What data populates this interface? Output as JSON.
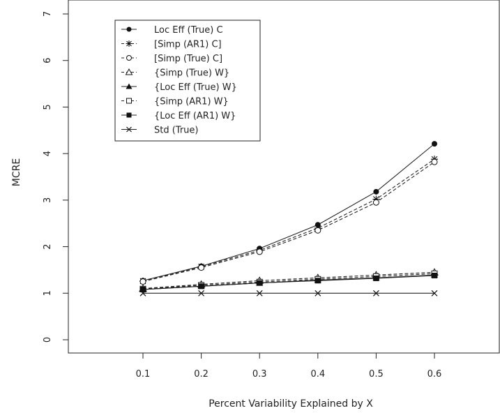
{
  "chart_data": {
    "type": "line",
    "title": "",
    "xlabel": "Percent Variability Explained by X",
    "ylabel": "MCRE",
    "x": [
      0.1,
      0.2,
      0.3,
      0.4,
      0.5,
      0.6
    ],
    "xlim": [
      0.0,
      0.7
    ],
    "ylim": [
      0,
      7
    ],
    "x_ticks": [
      "0.1",
      "0.2",
      "0.3",
      "0.4",
      "0.5",
      "0.6"
    ],
    "y_ticks": [
      "0",
      "1",
      "2",
      "3",
      "4",
      "5",
      "6",
      "7"
    ],
    "grid": false,
    "legend_position": "top-left",
    "series": [
      {
        "name": "Loc Eff (True) C",
        "marker": "filled-circle",
        "line": "solid",
        "values": [
          1.27,
          1.58,
          1.96,
          2.47,
          3.18,
          4.21
        ]
      },
      {
        "name": "[Simp (AR1) C]",
        "marker": "star",
        "line": "dashed",
        "values": [
          1.26,
          1.57,
          1.92,
          2.4,
          3.02,
          3.88
        ]
      },
      {
        "name": "[Simp (True) C]",
        "marker": "open-circle",
        "line": "dashed",
        "values": [
          1.25,
          1.55,
          1.89,
          2.35,
          2.95,
          3.82
        ]
      },
      {
        "name": "{Simp (True) W}",
        "marker": "open-triangle",
        "line": "dashed",
        "values": [
          1.1,
          1.19,
          1.27,
          1.33,
          1.39,
          1.45
        ]
      },
      {
        "name": "{Loc Eff (True) W}",
        "marker": "filled-triangle",
        "line": "solid",
        "values": [
          1.08,
          1.15,
          1.22,
          1.28,
          1.33,
          1.39
        ]
      },
      {
        "name": "{Simp (AR1) W}",
        "marker": "open-square",
        "line": "dashed",
        "values": [
          1.09,
          1.17,
          1.24,
          1.3,
          1.36,
          1.42
        ]
      },
      {
        "name": "{Loc Eff (AR1) W}",
        "marker": "filled-square",
        "line": "solid",
        "values": [
          1.08,
          1.15,
          1.22,
          1.27,
          1.32,
          1.38
        ]
      },
      {
        "name": "Std (True)",
        "marker": "x",
        "line": "solid",
        "values": [
          1.0,
          1.0,
          1.0,
          1.0,
          1.0,
          1.0
        ]
      }
    ]
  }
}
